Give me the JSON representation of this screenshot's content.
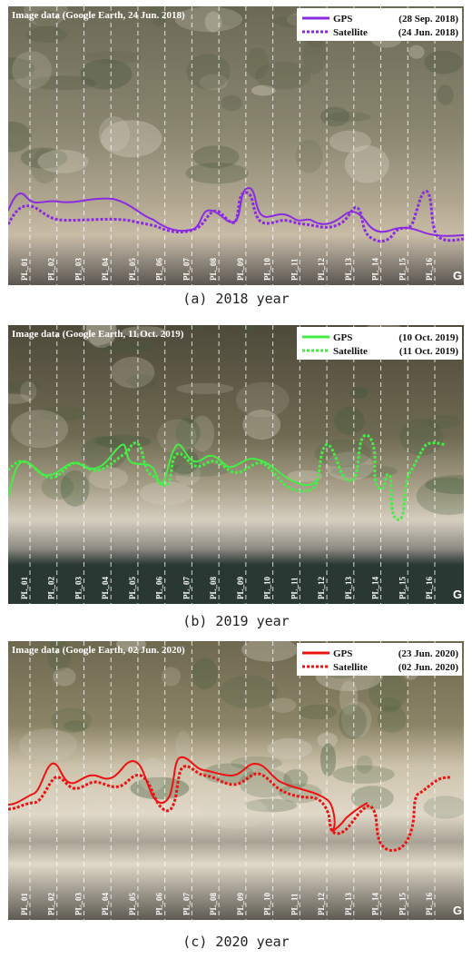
{
  "panels": [
    {
      "caption": "(a) 2018 year",
      "source_label": "Image data (Google Earth, 24 Jun. 2018)",
      "line_color": "#8a2be2",
      "legend": [
        {
          "series": "GPS",
          "date": "(28 Sep. 2018)"
        },
        {
          "series": "Satellite",
          "date": "(24 Jun. 2018)"
        }
      ],
      "palette": {
        "sky": "#6c6a56",
        "veg": "#8a8670",
        "dune": "#b0a690",
        "beach": "#c9bca6",
        "wet": "#a69c8e",
        "sea": "#5a5650"
      }
    },
    {
      "caption": "(b) 2019 year",
      "source_label": "Image data (Google Earth, 11 Oct. 2019)",
      "line_color": "#44ee44",
      "legend": [
        {
          "series": "GPS",
          "date": "(10 Oct. 2019)"
        },
        {
          "series": "Satellite",
          "date": "(11 Oct. 2019)"
        }
      ],
      "palette": {
        "sky": "#4e4a3a",
        "veg": "#6f6a52",
        "dune": "#a89f88",
        "beach": "#d6cfc0",
        "wet": "#8f8c84",
        "sea": "#2a3834"
      }
    },
    {
      "caption": "(c) 2020 year",
      "source_label": "Image data (Google Earth, 02 Jun. 2020)",
      "line_color": "#ee1111",
      "legend": [
        {
          "series": "GPS",
          "date": "(23 Jun. 2020)"
        },
        {
          "series": "Satellite",
          "date": "(02 Jun. 2020)"
        }
      ],
      "palette": {
        "sky": "#6e6850",
        "veg": "#8c8466",
        "dune": "#cdc3ac",
        "beach": "#e0d8c8",
        "wet": "#a8a294",
        "sea": "#5c5a52"
      }
    }
  ],
  "profiles": [
    "PL_01",
    "PL_02",
    "PL_03",
    "PL_04",
    "PL_05",
    "PL_06",
    "PL_07",
    "PL_08",
    "PL_09",
    "PL_10",
    "PL_11",
    "PL_12",
    "PL_13",
    "PL_14",
    "PL_15",
    "PL_16"
  ],
  "google_mark": "G"
}
